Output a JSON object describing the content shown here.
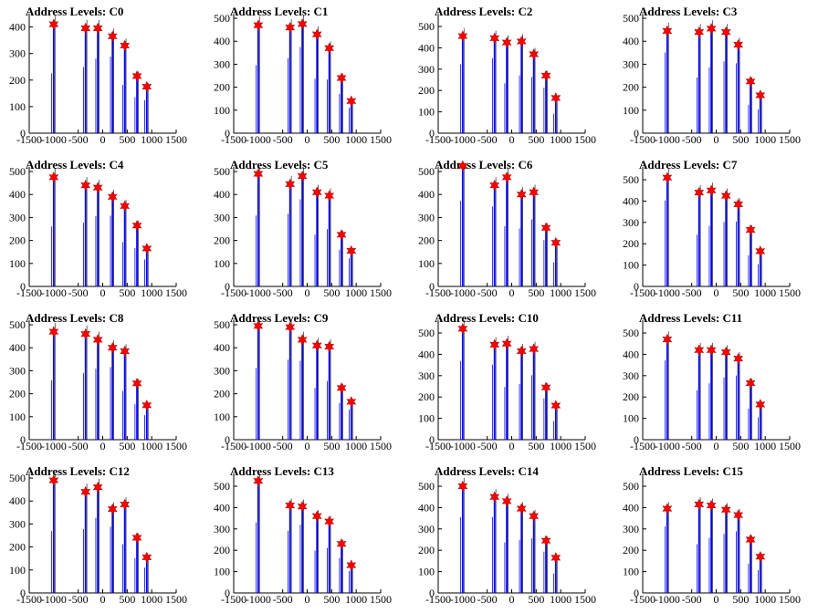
{
  "chart_data": {
    "type": "bar",
    "x_ticks": [
      -1500,
      -1000,
      -500,
      0,
      500,
      1000,
      1500
    ],
    "xlim": [
      -1500,
      1500
    ],
    "y_ticks": [
      0,
      100,
      200,
      300,
      400,
      500
    ],
    "colors": {
      "bars": "#0000ff",
      "markers": "#ff0000",
      "axes": "#000000"
    },
    "marker_x": [
      -1000,
      -350,
      -100,
      200,
      450,
      700,
      900
    ],
    "panels": [
      {
        "title": "Address Levels: C0",
        "ylim": [
          0,
          450
        ],
        "peaks": [
          410,
          395,
          395,
          365,
          330,
          215,
          175
        ]
      },
      {
        "title": "Address Levels: C1",
        "ylim": [
          0,
          520
        ],
        "peaks": [
          470,
          460,
          475,
          430,
          370,
          240,
          140
        ]
      },
      {
        "title": "Address Levels: C2",
        "ylim": [
          0,
          560
        ],
        "peaks": [
          455,
          445,
          425,
          430,
          370,
          270,
          165
        ]
      },
      {
        "title": "Address Levels: C3",
        "ylim": [
          0,
          520
        ],
        "peaks": [
          445,
          440,
          455,
          440,
          385,
          225,
          165
        ]
      },
      {
        "title": "Address Levels: C4",
        "ylim": [
          0,
          520
        ],
        "peaks": [
          475,
          440,
          430,
          390,
          350,
          265,
          165
        ]
      },
      {
        "title": "Address Levels: C5",
        "ylim": [
          0,
          520
        ],
        "peaks": [
          490,
          445,
          480,
          410,
          395,
          225,
          155
        ]
      },
      {
        "title": "Address Levels: C6",
        "ylim": [
          0,
          520
        ],
        "peaks": [
          525,
          440,
          475,
          400,
          410,
          255,
          190
        ]
      },
      {
        "title": "Address Levels: C7",
        "ylim": [
          0,
          560
        ],
        "peaks": [
          510,
          440,
          450,
          425,
          385,
          265,
          165
        ]
      },
      {
        "title": "Address Levels: C8",
        "ylim": [
          0,
          520
        ],
        "peaks": [
          470,
          460,
          435,
          400,
          385,
          245,
          150
        ]
      },
      {
        "title": "Address Levels: C9",
        "ylim": [
          0,
          520
        ],
        "peaks": [
          495,
          490,
          435,
          410,
          405,
          225,
          165
        ]
      },
      {
        "title": "Address Levels: C10",
        "ylim": [
          0,
          560
        ],
        "peaks": [
          520,
          445,
          450,
          415,
          425,
          245,
          160
        ]
      },
      {
        "title": "Address Levels: C11",
        "ylim": [
          0,
          560
        ],
        "peaks": [
          470,
          420,
          420,
          410,
          380,
          265,
          165
        ]
      },
      {
        "title": "Address Levels: C12",
        "ylim": [
          0,
          520
        ],
        "peaks": [
          490,
          440,
          460,
          365,
          385,
          240,
          155
        ]
      },
      {
        "title": "Address Levels: C13",
        "ylim": [
          0,
          560
        ],
        "peaks": [
          525,
          410,
          405,
          360,
          335,
          230,
          130
        ]
      },
      {
        "title": "Address Levels: C14",
        "ylim": [
          0,
          560
        ],
        "peaks": [
          500,
          450,
          430,
          395,
          360,
          245,
          165
        ]
      },
      {
        "title": "Address Levels: C15",
        "ylim": [
          0,
          560
        ],
        "peaks": [
          395,
          415,
          410,
          390,
          365,
          250,
          170
        ]
      }
    ]
  }
}
